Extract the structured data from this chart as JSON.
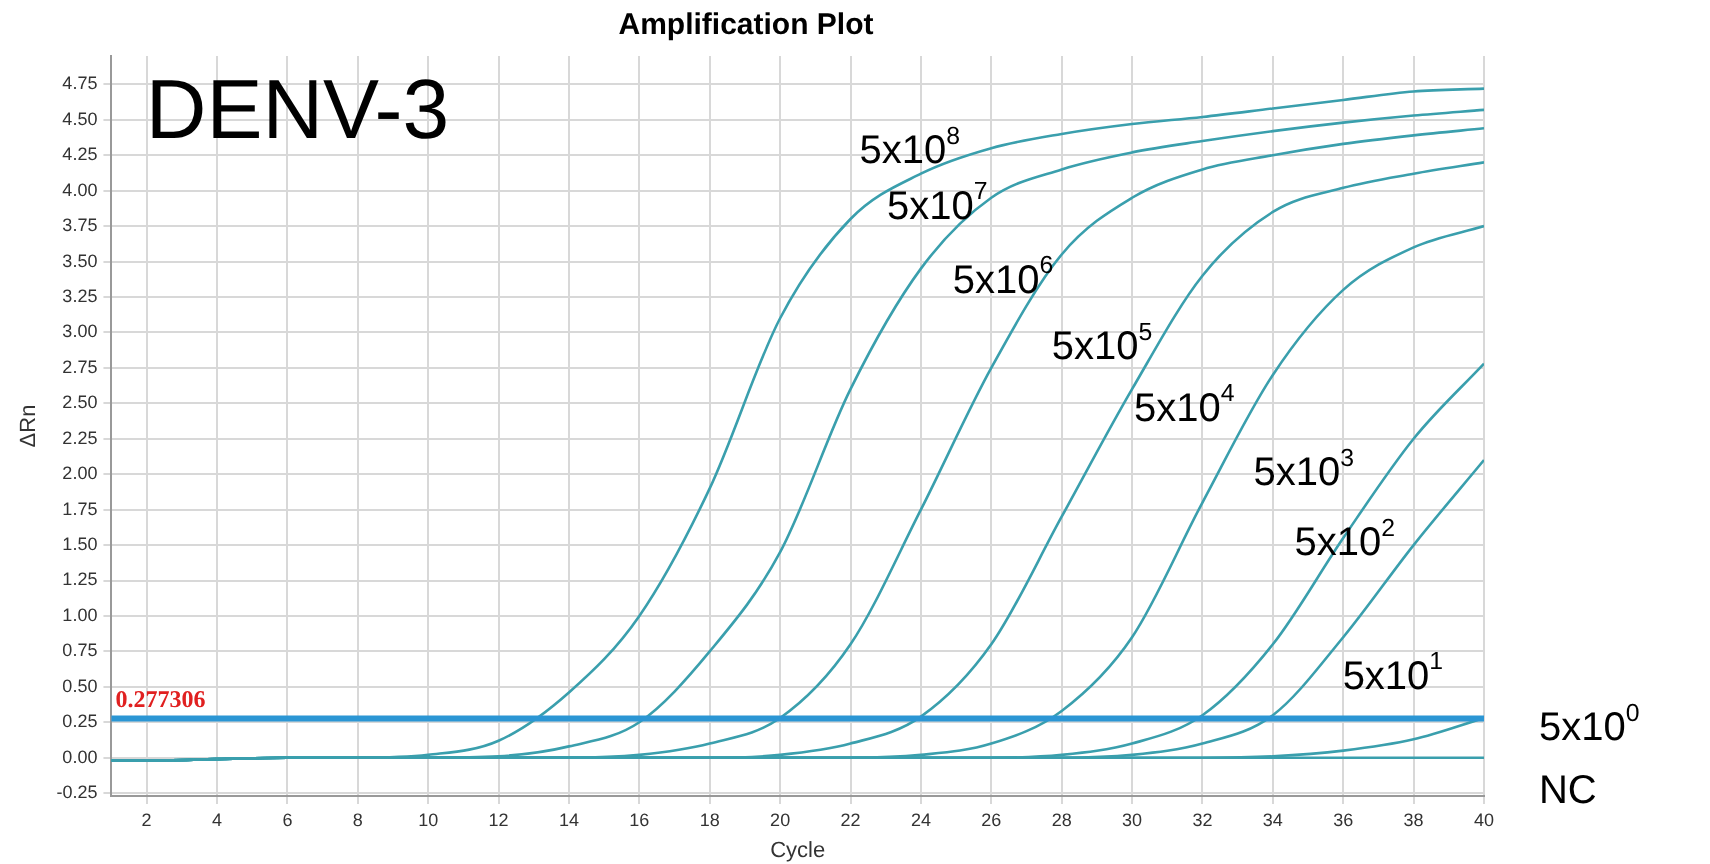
{
  "chart_data": {
    "type": "line",
    "title": "Amplification Plot",
    "xlabel": "Cycle",
    "ylabel": "ΔRn",
    "annotations": [
      "DENV-3",
      "5x10$^{0}$"
    ],
    "x": [
      1,
      2,
      4,
      6,
      8,
      10,
      12,
      14,
      16,
      18,
      20,
      22,
      24,
      26,
      28,
      30,
      32,
      34,
      36,
      38,
      40
    ],
    "series": [
      {
        "name": "5x10$^{8}$",
        "color": "#3a9fad",
        "values": [
          -0.02,
          -0.02,
          -0.01,
          0,
          0,
          0.02,
          0.12,
          0.46,
          1.0,
          1.9,
          3.1,
          3.8,
          4.12,
          4.3,
          4.4,
          4.47,
          4.52,
          4.58,
          4.64,
          4.7,
          4.72
        ]
      },
      {
        "name": "5x10$^{7}$",
        "color": "#3a9fad",
        "values": [
          -0.02,
          -0.02,
          -0.01,
          0,
          0,
          0,
          0.01,
          0.08,
          0.25,
          0.75,
          1.45,
          2.6,
          3.45,
          3.95,
          4.15,
          4.27,
          4.35,
          4.42,
          4.48,
          4.53,
          4.57
        ]
      },
      {
        "name": "5x10$^{6}$",
        "color": "#3a9fad",
        "values": [
          -0.02,
          -0.02,
          -0.01,
          0,
          0,
          0,
          0,
          0,
          0.02,
          0.1,
          0.28,
          0.8,
          1.75,
          2.75,
          3.55,
          3.95,
          4.15,
          4.25,
          4.33,
          4.39,
          4.44
        ]
      },
      {
        "name": "5x10$^{5}$",
        "color": "#3a9fad",
        "values": [
          -0.02,
          -0.02,
          -0.01,
          0,
          0,
          0,
          0,
          0,
          0,
          0,
          0.02,
          0.1,
          0.29,
          0.8,
          1.7,
          2.6,
          3.4,
          3.85,
          4.02,
          4.12,
          4.2
        ]
      },
      {
        "name": "5x10$^{4}$",
        "color": "#3a9fad",
        "values": [
          -0.02,
          -0.02,
          -0.01,
          0,
          0,
          0,
          0,
          0,
          0,
          0,
          0,
          0,
          0.02,
          0.1,
          0.33,
          0.85,
          1.8,
          2.7,
          3.3,
          3.6,
          3.75
        ]
      },
      {
        "name": "5x10$^{3}$",
        "color": "#3a9fad",
        "values": [
          -0.02,
          -0.02,
          -0.01,
          0,
          0,
          0,
          0,
          0,
          0,
          0,
          0,
          0,
          0,
          0,
          0.02,
          0.1,
          0.3,
          0.8,
          1.55,
          2.25,
          2.78
        ]
      },
      {
        "name": "5x10$^{2}$",
        "color": "#3a9fad",
        "values": [
          -0.02,
          -0.02,
          -0.01,
          0,
          0,
          0,
          0,
          0,
          0,
          0,
          0,
          0,
          0,
          0,
          0,
          0.02,
          0.1,
          0.3,
          0.85,
          1.5,
          2.1
        ]
      },
      {
        "name": "5x10$^{1}$",
        "color": "#3a9fad",
        "values": [
          -0.02,
          -0.02,
          -0.01,
          0,
          0,
          0,
          0,
          0,
          0,
          0,
          0,
          0,
          0,
          0,
          0,
          0,
          0,
          0.01,
          0.05,
          0.13,
          0.28
        ]
      },
      {
        "name": "NC",
        "color": "#3a9fad",
        "values": [
          -0.02,
          -0.02,
          -0.01,
          0,
          0,
          0,
          0,
          0,
          0,
          0,
          0,
          0,
          0,
          0,
          0,
          0,
          0,
          0,
          0,
          0,
          0
        ]
      }
    ],
    "ref_lines": [
      {
        "axis": "y",
        "value": 0.277306,
        "label": "0.277306",
        "color": "#2b96d4"
      }
    ],
    "xlim": [
      1,
      40
    ],
    "xticks": [
      2,
      4,
      6,
      8,
      10,
      12,
      14,
      16,
      18,
      20,
      22,
      24,
      26,
      28,
      30,
      32,
      34,
      36,
      38,
      40
    ],
    "ylim": [
      -0.27,
      4.95
    ],
    "yticks": [
      -0.25,
      {
        "value": 0,
        "label": "0.00"
      },
      0.25,
      {
        "value": 0.5,
        "label": "0.50"
      },
      0.75,
      {
        "value": 1,
        "label": "1.00"
      },
      1.25,
      {
        "value": 1.5,
        "label": "1.50"
      },
      1.75,
      {
        "value": 2,
        "label": "2.00"
      },
      2.25,
      {
        "value": 2.5,
        "label": "2.50"
      },
      2.75,
      {
        "value": 3,
        "label": "3.00"
      },
      3.25,
      {
        "value": 3.5,
        "label": "3.50"
      },
      3.75,
      {
        "value": 4,
        "label": "4.00"
      },
      4.25,
      {
        "value": 4.5,
        "label": "4.50"
      },
      4.75
    ],
    "grid": true,
    "legend": false,
    "marker": "none",
    "line_style": "solid"
  }
}
